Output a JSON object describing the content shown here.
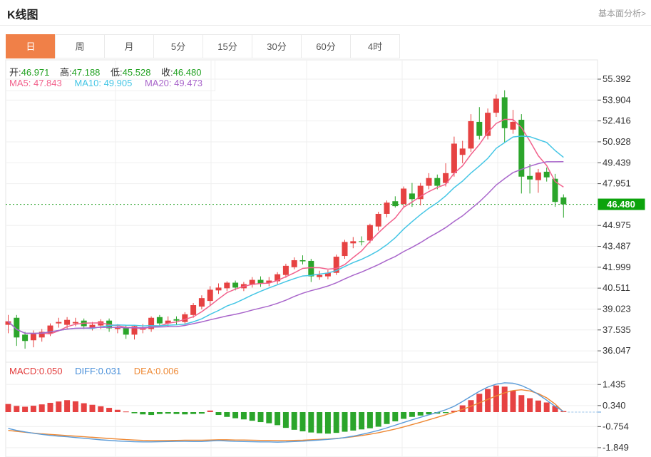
{
  "header": {
    "title": "K线图",
    "link": "基本面分析>"
  },
  "tabs": {
    "items": [
      "日",
      "周",
      "月",
      "5分",
      "15分",
      "30分",
      "60分",
      "4时"
    ],
    "active_index": 0
  },
  "overlay": {
    "ohlc": [
      {
        "label": "开:",
        "value": "46.971"
      },
      {
        "label": "高:",
        "value": "47.188"
      },
      {
        "label": "低:",
        "value": "45.528"
      },
      {
        "label": "收:",
        "value": "46.480"
      }
    ],
    "ma": [
      {
        "label": "MA5:",
        "value": "47.843",
        "color": "#f2618c"
      },
      {
        "label": "MA10:",
        "value": "49.905",
        "color": "#45c6e5"
      },
      {
        "label": "MA20:",
        "value": "49.473",
        "color": "#a966cb"
      }
    ]
  },
  "macd_header": [
    {
      "label": "MACD:",
      "value": "0.050",
      "color": "#e23a3a"
    },
    {
      "label": "DIFF:",
      "value": "0.031",
      "color": "#4a90d9"
    },
    {
      "label": "DEA:",
      "value": "0.006",
      "color": "#ee8833"
    }
  ],
  "price_axis": {
    "tick_labels": [
      "55.392",
      "53.904",
      "52.416",
      "50.928",
      "49.439",
      "47.951",
      "44.975",
      "43.487",
      "41.999",
      "40.511",
      "39.023",
      "37.535",
      "36.047"
    ],
    "current": "46.480"
  },
  "macd_axis": {
    "tick_labels": [
      "1.435",
      "0.340",
      "-0.754",
      "-1.849"
    ]
  },
  "chart_data": {
    "type": "candlestick",
    "title": "K线图 daily candlestick with MA5/MA10/MA20 and MACD",
    "panes": [
      "price",
      "macd"
    ],
    "legend_position": "top-left-overlay",
    "grid": true,
    "price_axis_range": [
      36.047,
      55.392
    ],
    "macd_axis_range": [
      -1.849,
      1.435
    ],
    "current_price": "46.480",
    "up_color": "#e64242",
    "down_color": "#2ba52b",
    "current_line_color": "#1a9c1a",
    "tag_bg_color": "#0ca30c",
    "ma_periods": [
      5,
      10,
      20
    ],
    "ma_colors": [
      "#f2618c",
      "#45c6e5",
      "#a966cb"
    ],
    "candles_ohlc": [
      [
        37.9,
        38.6,
        37.3,
        38.15
      ],
      [
        38.4,
        38.6,
        36.4,
        37.0
      ],
      [
        37.2,
        37.4,
        36.2,
        36.75
      ],
      [
        36.8,
        37.5,
        36.3,
        37.25
      ],
      [
        37.0,
        37.6,
        36.7,
        37.4
      ],
      [
        37.3,
        38.0,
        37.1,
        37.85
      ],
      [
        38.0,
        38.4,
        37.7,
        38.1
      ],
      [
        37.9,
        38.45,
        37.6,
        38.25
      ],
      [
        38.0,
        38.4,
        37.8,
        38.1
      ],
      [
        38.2,
        38.35,
        37.6,
        37.8
      ],
      [
        37.7,
        38.1,
        37.5,
        37.9
      ],
      [
        37.85,
        38.3,
        37.6,
        38.15
      ],
      [
        38.2,
        38.35,
        37.4,
        37.65
      ],
      [
        37.6,
        37.95,
        37.3,
        37.7
      ],
      [
        37.7,
        37.85,
        36.9,
        37.2
      ],
      [
        37.2,
        37.9,
        36.85,
        37.8
      ],
      [
        37.55,
        37.95,
        37.3,
        37.7
      ],
      [
        37.6,
        38.5,
        37.4,
        38.4
      ],
      [
        38.45,
        38.6,
        37.8,
        38.0
      ],
      [
        38.0,
        38.5,
        37.8,
        38.2
      ],
      [
        38.3,
        38.5,
        37.9,
        38.2
      ],
      [
        38.1,
        38.8,
        37.9,
        38.65
      ],
      [
        38.6,
        39.45,
        38.4,
        39.3
      ],
      [
        39.2,
        40.0,
        39.0,
        39.8
      ],
      [
        39.6,
        40.65,
        39.3,
        40.4
      ],
      [
        40.35,
        40.85,
        40.1,
        40.55
      ],
      [
        40.5,
        41.0,
        40.3,
        40.9
      ],
      [
        40.9,
        41.05,
        40.35,
        40.55
      ],
      [
        40.5,
        40.95,
        40.3,
        40.8
      ],
      [
        40.75,
        41.3,
        40.55,
        41.1
      ],
      [
        41.1,
        41.35,
        40.6,
        40.85
      ],
      [
        40.9,
        41.3,
        40.65,
        41.05
      ],
      [
        41.0,
        41.65,
        40.8,
        41.5
      ],
      [
        41.45,
        42.25,
        41.25,
        42.1
      ],
      [
        42.0,
        42.7,
        41.85,
        42.5
      ],
      [
        42.5,
        42.85,
        42.2,
        42.42
      ],
      [
        42.45,
        42.6,
        40.95,
        41.35
      ],
      [
        41.3,
        41.75,
        41.1,
        41.45
      ],
      [
        41.35,
        41.8,
        41.15,
        41.6
      ],
      [
        41.6,
        42.9,
        41.45,
        42.75
      ],
      [
        42.8,
        43.95,
        42.6,
        43.8
      ],
      [
        43.7,
        44.15,
        43.35,
        43.85
      ],
      [
        43.85,
        44.2,
        43.55,
        43.8
      ],
      [
        43.9,
        45.1,
        43.7,
        45.0
      ],
      [
        44.9,
        45.95,
        44.6,
        45.8
      ],
      [
        45.8,
        46.75,
        45.55,
        46.6
      ],
      [
        46.7,
        47.05,
        46.25,
        46.35
      ],
      [
        46.5,
        47.75,
        46.3,
        47.6
      ],
      [
        47.25,
        48.0,
        46.3,
        46.85
      ],
      [
        46.85,
        48.0,
        46.4,
        47.8
      ],
      [
        47.8,
        48.7,
        47.55,
        48.35
      ],
      [
        48.35,
        48.6,
        47.55,
        47.8
      ],
      [
        48.0,
        49.4,
        47.75,
        48.7
      ],
      [
        48.7,
        51.3,
        48.45,
        50.8
      ],
      [
        50.0,
        51.0,
        49.4,
        50.45
      ],
      [
        50.45,
        52.9,
        50.2,
        52.4
      ],
      [
        52.35,
        53.4,
        51.1,
        51.35
      ],
      [
        51.35,
        53.3,
        51.1,
        53.0
      ],
      [
        53.0,
        54.3,
        52.7,
        54.0
      ],
      [
        54.1,
        54.6,
        50.9,
        51.9
      ],
      [
        51.8,
        53.2,
        51.5,
        52.35
      ],
      [
        52.5,
        52.9,
        47.25,
        48.45
      ],
      [
        48.5,
        49.35,
        47.25,
        48.25
      ],
      [
        48.2,
        49.0,
        47.3,
        48.75
      ],
      [
        48.8,
        49.1,
        48.1,
        48.4
      ],
      [
        48.3,
        48.65,
        46.3,
        46.65
      ],
      [
        46.971,
        47.188,
        45.528,
        46.48
      ]
    ],
    "macd": {
      "diff_color": "#5a9bd8",
      "dea_color": "#ee8833",
      "hist": [
        0.42,
        0.32,
        0.28,
        0.33,
        0.4,
        0.48,
        0.55,
        0.62,
        0.56,
        0.46,
        0.38,
        0.3,
        0.22,
        0.12,
        0.03,
        -0.06,
        -0.12,
        -0.15,
        -0.1,
        -0.08,
        -0.1,
        -0.12,
        -0.1,
        -0.08,
        0.08,
        -0.15,
        -0.25,
        -0.32,
        -0.38,
        -0.45,
        -0.52,
        -0.58,
        -0.68,
        -0.82,
        -0.92,
        -1.0,
        -1.06,
        -1.1,
        -1.12,
        -1.08,
        -1.02,
        -0.96,
        -0.9,
        -0.84,
        -0.76,
        -0.62,
        -0.48,
        -0.35,
        -0.25,
        -0.18,
        -0.12,
        -0.08,
        -0.05,
        0.07,
        0.35,
        0.62,
        0.95,
        1.2,
        1.38,
        1.32,
        1.12,
        0.88,
        0.72,
        0.6,
        0.5,
        0.32,
        0.05
      ],
      "diff": [
        -0.85,
        -0.95,
        -1.03,
        -1.1,
        -1.16,
        -1.21,
        -1.25,
        -1.28,
        -1.32,
        -1.36,
        -1.4,
        -1.44,
        -1.47,
        -1.5,
        -1.52,
        -1.54,
        -1.55,
        -1.55,
        -1.54,
        -1.53,
        -1.52,
        -1.52,
        -1.53,
        -1.53,
        -1.5,
        -1.48,
        -1.5,
        -1.52,
        -1.53,
        -1.54,
        -1.55,
        -1.55,
        -1.56,
        -1.55,
        -1.53,
        -1.51,
        -1.48,
        -1.45,
        -1.42,
        -1.38,
        -1.32,
        -1.25,
        -1.16,
        -1.06,
        -0.95,
        -0.82,
        -0.68,
        -0.54,
        -0.4,
        -0.27,
        -0.14,
        -0.02,
        0.12,
        0.3,
        0.55,
        0.82,
        1.08,
        1.3,
        1.45,
        1.52,
        1.5,
        1.38,
        1.18,
        0.92,
        0.62,
        0.3,
        0.031
      ],
      "dea": [
        -0.95,
        -1.0,
        -1.05,
        -1.09,
        -1.13,
        -1.16,
        -1.19,
        -1.22,
        -1.25,
        -1.28,
        -1.31,
        -1.34,
        -1.37,
        -1.4,
        -1.43,
        -1.45,
        -1.47,
        -1.48,
        -1.48,
        -1.48,
        -1.47,
        -1.46,
        -1.46,
        -1.46,
        -1.45,
        -1.44,
        -1.44,
        -1.45,
        -1.45,
        -1.46,
        -1.47,
        -1.47,
        -1.48,
        -1.48,
        -1.47,
        -1.46,
        -1.44,
        -1.42,
        -1.4,
        -1.37,
        -1.33,
        -1.28,
        -1.22,
        -1.15,
        -1.07,
        -0.98,
        -0.88,
        -0.77,
        -0.65,
        -0.53,
        -0.4,
        -0.27,
        -0.14,
        0.0,
        0.14,
        0.3,
        0.48,
        0.66,
        0.84,
        1.0,
        1.12,
        1.16,
        1.1,
        0.96,
        0.74,
        0.42,
        0.006
      ]
    }
  }
}
